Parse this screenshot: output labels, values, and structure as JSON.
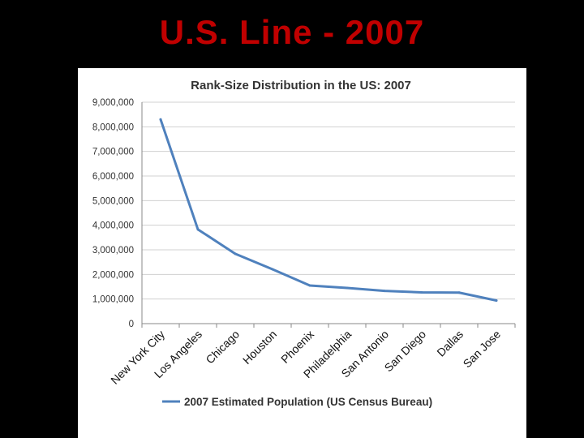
{
  "slide": {
    "title": "U.S. Line - 2007"
  },
  "colors": {
    "background": "#000000",
    "title": "#c00000",
    "series_line": "#4f81bd",
    "gridline": "#d0d0d0"
  },
  "chart_data": {
    "type": "line",
    "title": "Rank-Size Distribution in the US: 2007",
    "xlabel": "",
    "ylabel": "",
    "categories": [
      "New York City",
      "Los Angeles",
      "Chicago",
      "Houston",
      "Phoenix",
      "Philadelphia",
      "San Antonio",
      "San Diego",
      "Dallas",
      "San Jose"
    ],
    "series": [
      {
        "name": "2007 Estimated Population (US Census Bureau)",
        "values": [
          8300000,
          3830000,
          2840000,
          2210000,
          1550000,
          1450000,
          1330000,
          1270000,
          1260000,
          940000
        ]
      }
    ],
    "ylim": [
      0,
      9000000
    ],
    "yticks": [
      0,
      1000000,
      2000000,
      3000000,
      4000000,
      5000000,
      6000000,
      7000000,
      8000000,
      9000000
    ],
    "ytick_labels": [
      "0",
      "1,000,000",
      "2,000,000",
      "3,000,000",
      "4,000,000",
      "5,000,000",
      "6,000,000",
      "7,000,000",
      "8,000,000",
      "9,000,000"
    ],
    "grid": true,
    "legend_position": "bottom"
  }
}
